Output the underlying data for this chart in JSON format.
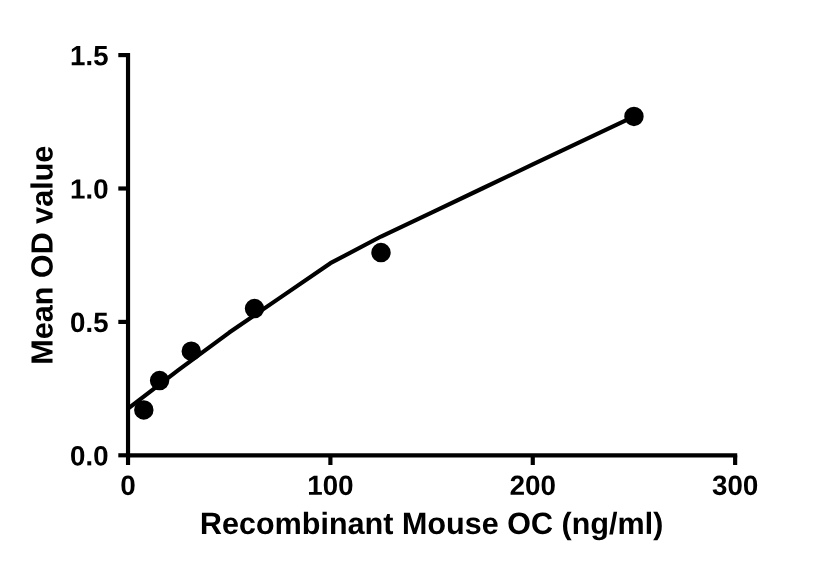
{
  "chart_data": {
    "type": "scatter",
    "xlabel": "Recombinant Mouse OC (ng/ml)",
    "ylabel": "Mean OD value",
    "xlim": [
      0,
      300
    ],
    "xticks": [
      0,
      100,
      200,
      300
    ],
    "ylim": [
      0,
      1.5
    ],
    "yticks": [
      {
        "value": 0,
        "label": "0.0"
      },
      0.5,
      {
        "value": 1,
        "label": "1.0"
      },
      1.5
    ],
    "grid": false,
    "series": [
      {
        "color": "#000000",
        "marker": "circle",
        "x": [
          7.8,
          15.6,
          31.25,
          62.5,
          125,
          250
        ],
        "values": [
          0.17,
          0.28,
          0.39,
          0.55,
          0.76,
          1.27
        ]
      },
      {
        "type": "line",
        "color": "#000000",
        "line_style": "solid",
        "x": [
          0,
          25,
          50,
          75,
          100,
          125,
          150,
          175,
          200,
          250
        ],
        "values": [
          0.175,
          0.32,
          0.46,
          0.59,
          0.72,
          0.82,
          0.91,
          1.0,
          1.09,
          1.27
        ]
      }
    ]
  }
}
